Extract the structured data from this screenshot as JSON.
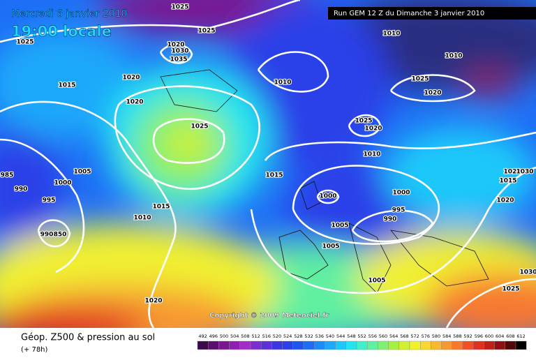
{
  "header": {
    "date": "Mercredi 6 janvier 2010",
    "time": "19:00 locale",
    "run": "Run GEM 12 Z du Dimanche 3 janvier 2010"
  },
  "copyright": "Copyright © 2009 Meteociel.fr",
  "legend": {
    "title": "Géop. Z500 & pression au sol",
    "subtitle": "(+ 78h)"
  },
  "isobar_labels": [
    "1025",
    "1025",
    "1025",
    "1020",
    "1030",
    "1035",
    "1015",
    "1020",
    "1020",
    "1010",
    "1025",
    "1010",
    "1010",
    "1025",
    "1020",
    "1025",
    "1020",
    "1010",
    "985",
    "990",
    "1005",
    "1000",
    "995",
    "1015",
    "1000",
    "1000",
    "1015",
    "1010",
    "995",
    "990",
    "1005",
    "1005",
    "990",
    "850",
    "1020",
    "1030",
    "1015",
    "1020",
    "1005",
    "1020",
    "1025",
    "1030"
  ],
  "colorbar": {
    "ticks": [
      492,
      496,
      500,
      504,
      508,
      512,
      516,
      520,
      524,
      528,
      532,
      536,
      540,
      544,
      548,
      552,
      556,
      560,
      564,
      568,
      572,
      576,
      580,
      584,
      588,
      592,
      596,
      600,
      604,
      608,
      612
    ],
    "colors": [
      "#3c0a4a",
      "#5a0f6e",
      "#7a1690",
      "#8f1fb0",
      "#a52bc8",
      "#7a2ed0",
      "#5a32d8",
      "#3a36e0",
      "#2a40e8",
      "#1e55f0",
      "#1e6ef5",
      "#1e8af8",
      "#1ea8fa",
      "#1ec8fa",
      "#20e4f0",
      "#40f0c8",
      "#60f0a0",
      "#80f070",
      "#a8f040",
      "#d0f030",
      "#f0f030",
      "#f8d830",
      "#f8b830",
      "#f89830",
      "#f87830",
      "#f05028",
      "#e03020",
      "#c02018",
      "#901010",
      "#500808",
      "#000000"
    ]
  }
}
